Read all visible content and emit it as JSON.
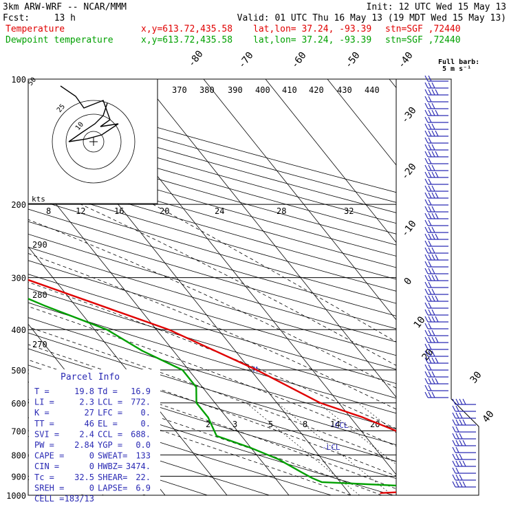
{
  "header": {
    "title": "3km ARW-WRF -- NCAR/MMM",
    "init": "Init: 12 UTC Wed 15 May 13",
    "fcst_label": "Fcst:",
    "fcst_value": "13 h",
    "valid": "Valid: 01 UTC Thu 16 May 13 (19 MDT Wed 15 May 13)",
    "series": [
      {
        "name": "Temperature",
        "color": "#e00000",
        "xy": "x,y=613.72,435.58",
        "latlon": "lat,lon= 37.24, -93.39",
        "stn": "stn=SGF ,72440"
      },
      {
        "name": "Dewpoint temperature",
        "color": "#00a000",
        "xy": "x,y=613.72,435.58",
        "latlon": "lat,lon= 37.24, -93.39",
        "stn": "stn=SGF ,72440"
      }
    ]
  },
  "barb_key": {
    "line1": "Full barb:",
    "line2": "5 m s⁻¹"
  },
  "parcel_info": {
    "title": "Parcel Info",
    "rows": [
      [
        "T   =",
        "19.8",
        "Td  =",
        "16.9"
      ],
      [
        "LI  =",
        "2.3",
        "LCL =",
        "772."
      ],
      [
        "K   =",
        "27",
        "LFC =",
        "0."
      ],
      [
        "TT  =",
        "46",
        "EL  =",
        "0."
      ],
      [
        "SVI =",
        "2.4",
        "CCL =",
        "688."
      ],
      [
        "PW  =",
        "2.84",
        "YGP =",
        "0.0"
      ],
      [
        "CAPE =",
        "0",
        "SWEAT=",
        "133"
      ],
      [
        "CIN  =",
        "0",
        "HWBZ=",
        "3474."
      ],
      [
        "Tc  =",
        "32.5",
        "SHEAR=",
        "22."
      ],
      [
        "SREH =",
        "0",
        "LAPSE=",
        "6.9"
      ],
      [
        "CELL =",
        "183/13",
        "",
        ""
      ]
    ]
  },
  "chart_data": {
    "type": "line",
    "title": "",
    "y_axis": {
      "scale": "log",
      "range_hPa": [
        1000,
        100
      ],
      "ticks": [
        100,
        200,
        300,
        400,
        500,
        600,
        700,
        800,
        900,
        1000
      ]
    },
    "isotherms_C": [
      -80,
      -70,
      -60,
      -50,
      -40,
      -30,
      -20,
      -10,
      0,
      10,
      20,
      30,
      40
    ],
    "isotherm_labels": [
      "-80",
      "-70",
      "-60",
      "-50",
      "-40",
      "-30",
      "-20",
      "-10",
      "0",
      "10",
      "20",
      "30",
      "40"
    ],
    "theta_labels": [
      {
        "text": "370"
      },
      {
        "text": "380"
      },
      {
        "text": "390"
      },
      {
        "text": "400"
      },
      {
        "text": "410"
      },
      {
        "text": "420"
      },
      {
        "text": "430"
      },
      {
        "text": "440"
      },
      {
        "text": "290"
      },
      {
        "text": "280"
      },
      {
        "text": "270"
      }
    ],
    "mixing_ratio_labels": [
      "2",
      "3",
      "5",
      "8",
      "14",
      "20"
    ],
    "level_markers": [
      "-LCL",
      "-CCL",
      "M"
    ],
    "hodograph": {
      "speed_unit": "kts",
      "speed_labels": [
        "8",
        "12",
        "16",
        "20",
        "24",
        "28",
        "32"
      ],
      "ring_labels": [
        "50",
        "25",
        "10"
      ]
    },
    "series": [
      {
        "name": "Temperature",
        "color": "#e00000",
        "points": [
          [
            988,
            -5
          ],
          [
            980,
            0
          ],
          [
            965,
            5
          ],
          [
            950,
            11
          ],
          [
            930,
            18
          ],
          [
            910,
            21
          ],
          [
            880,
            20
          ],
          [
            820,
            18
          ],
          [
            770,
            12
          ],
          [
            720,
            7
          ],
          [
            650,
            2
          ],
          [
            600,
            -3
          ],
          [
            500,
            -9
          ],
          [
            400,
            -18
          ],
          [
            300,
            -35
          ],
          [
            250,
            -44
          ],
          [
            225,
            -50
          ],
          [
            210,
            -54
          ],
          [
            205,
            -57
          ],
          [
            200,
            -58
          ],
          [
            185,
            -57
          ],
          [
            165,
            -58
          ],
          [
            140,
            -57
          ],
          [
            120,
            -59
          ],
          [
            100,
            -62
          ]
        ]
      },
      {
        "name": "Dewpoint temperature",
        "color": "#00a000",
        "points": [
          [
            988,
            12
          ],
          [
            970,
            8
          ],
          [
            950,
            0
          ],
          [
            930,
            -13
          ],
          [
            910,
            -14
          ],
          [
            880,
            -15
          ],
          [
            820,
            -17
          ],
          [
            770,
            -20
          ],
          [
            720,
            -24
          ],
          [
            650,
            -23
          ],
          [
            600,
            -23
          ],
          [
            550,
            -21
          ],
          [
            500,
            -21
          ],
          [
            450,
            -25
          ],
          [
            400,
            -28
          ],
          [
            350,
            -35
          ],
          [
            300,
            -42
          ],
          [
            250,
            -51
          ],
          [
            220,
            -56
          ],
          [
            200,
            -60
          ],
          [
            185,
            -63
          ],
          [
            165,
            -67
          ],
          [
            140,
            -70
          ],
          [
            120,
            -73
          ],
          [
            100,
            -76
          ]
        ]
      }
    ]
  }
}
